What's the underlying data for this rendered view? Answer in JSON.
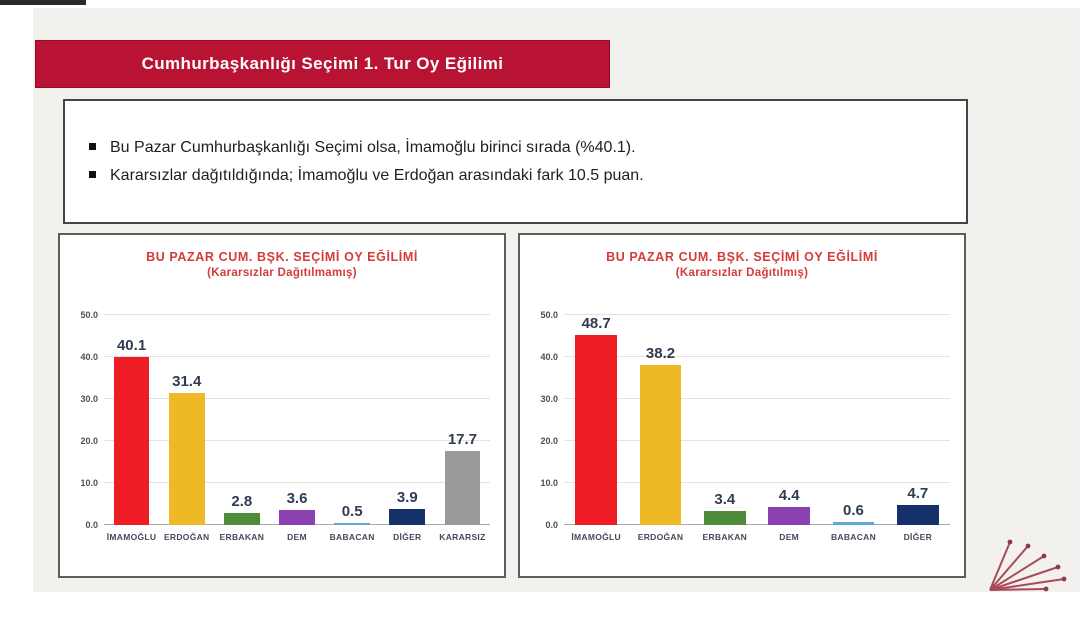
{
  "banner": {
    "title": "Cumhurbaşkanlığı Seçimi 1. Tur Oy Eğilimi",
    "bg_color": "#b91334"
  },
  "summary": {
    "bullets": [
      "Bu Pazar Cumhurbaşkanlığı Seçimi olsa, İmamoğlu birinci sırada (%40.1).",
      "Kararsızlar dağıtıldığında; İmamoğlu ve Erdoğan arasındaki fark 10.5 puan."
    ]
  },
  "chart_data": [
    {
      "type": "bar",
      "title": "BU PAZAR CUM. BŞK. SEÇİMİ OY EĞİLİMİ",
      "subtitle": "(Kararsızlar Dağıtılmamış)",
      "categories": [
        "İMAMOĞLU",
        "ERDOĞAN",
        "ERBAKAN",
        "DEM",
        "BABACAN",
        "DİĞER",
        "KARARSIZ"
      ],
      "values": [
        40.1,
        31.4,
        2.8,
        3.6,
        0.5,
        3.9,
        17.7
      ],
      "value_labels": [
        "40.1",
        "31.4",
        "2.8",
        "3.6",
        "0.5",
        "3.9",
        "17.7"
      ],
      "colors": [
        "#ee1c25",
        "#efb826",
        "#4e8c39",
        "#8a42b0",
        "#5fa8d7",
        "#14316b",
        "#9a9a9a"
      ],
      "xlabel": "",
      "ylabel": "",
      "ylim": [
        0,
        50
      ],
      "yticks": [
        0,
        10,
        20,
        30,
        40,
        50
      ],
      "ytick_labels": [
        "0.0",
        "10.0",
        "20.0",
        "30.0",
        "40.0",
        "50.0"
      ],
      "grid": true,
      "legend": false,
      "title_color": "#d43b3b"
    },
    {
      "type": "bar",
      "title": "BU PAZAR CUM. BŞK. SEÇİMİ OY EĞİLİMİ",
      "subtitle": "(Kararsızlar Dağıtılmış)",
      "categories": [
        "İMAMOĞLU",
        "ERDOĞAN",
        "ERBAKAN",
        "DEM",
        "BABACAN",
        "DİĞER"
      ],
      "values": [
        48.7,
        38.2,
        3.4,
        4.4,
        0.6,
        4.7
      ],
      "value_labels": [
        "48.7",
        "38.2",
        "3.4",
        "4.4",
        "0.6",
        "4.7"
      ],
      "colors": [
        "#ee1c25",
        "#efb826",
        "#4e8c39",
        "#8a42b0",
        "#5fa8d7",
        "#14316b"
      ],
      "xlabel": "",
      "ylabel": "",
      "ylim": [
        0,
        50
      ],
      "yticks": [
        0,
        10,
        20,
        30,
        40,
        50
      ],
      "ytick_labels": [
        "0.0",
        "10.0",
        "20.0",
        "30.0",
        "40.0",
        "50.0"
      ],
      "grid": true,
      "legend": false,
      "title_color": "#d43b3b"
    }
  ],
  "logo": {
    "name": "fan-rays-logo",
    "color": "#a84a57"
  }
}
